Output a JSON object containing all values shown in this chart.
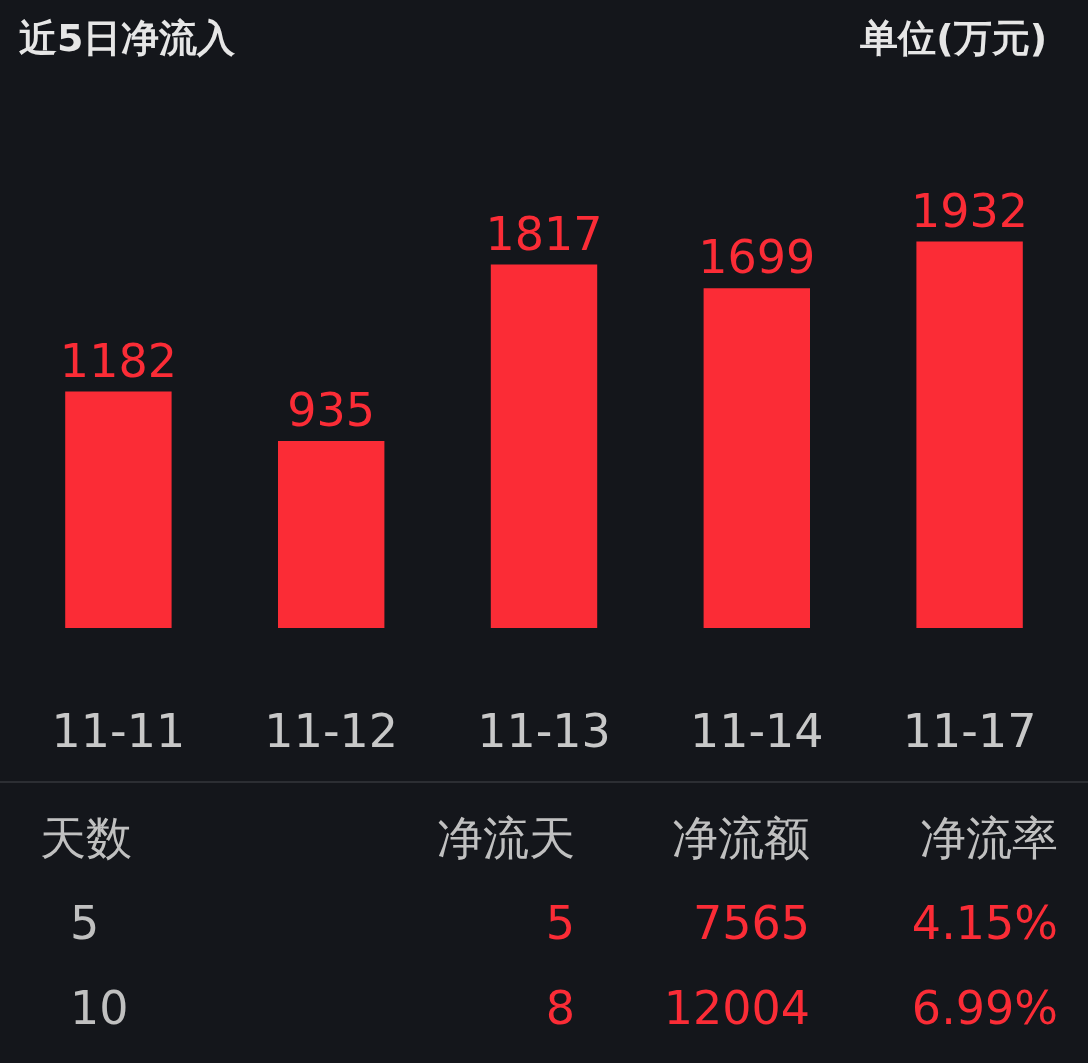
{
  "chart_data": [
    {
      "type": "bar",
      "title": "近5日净流入",
      "subtitle": "单位(万元)",
      "categories": [
        "11-11",
        "11-12",
        "11-13",
        "11-14",
        "11-17"
      ],
      "values": [
        1182,
        935,
        1817,
        1699,
        1932
      ],
      "color": "#fb2c36",
      "data_labels": true
    },
    {
      "type": "other",
      "annotations": [
        "天数",
        "净流天",
        "净流额",
        "净流率",
        "5",
        "5",
        "7565",
        "4.15%",
        "10",
        "8",
        "12004",
        "6.99%"
      ]
    }
  ]
}
